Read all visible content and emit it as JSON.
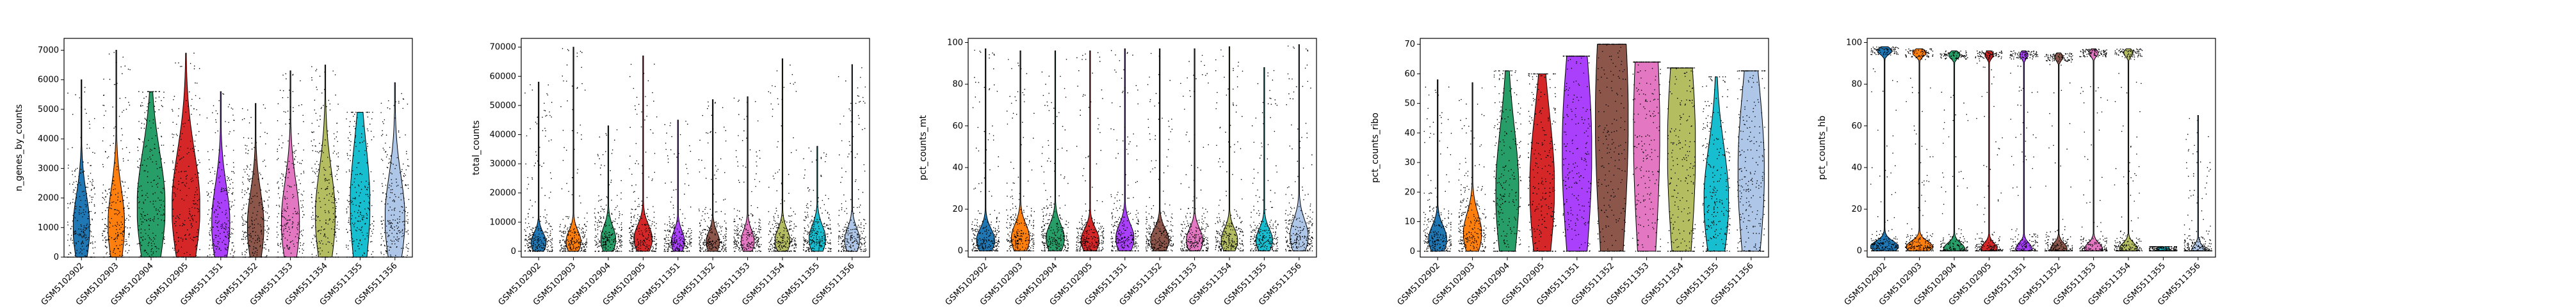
{
  "colors": {
    "GSM5102902": "#1f77b4",
    "GSM5102903": "#ff7f0e",
    "GSM5102904": "#279e68",
    "GSM5102905": "#d62728",
    "GSM5511351": "#aa40fc",
    "GSM5511352": "#8c564b",
    "GSM5511353": "#e377c2",
    "GSM5511354": "#b5bd61",
    "GSM5511355": "#17becf",
    "GSM5511356": "#aec7e8"
  },
  "chart_data": [
    {
      "type": "violin",
      "ylabel": "n_genes_by_counts",
      "ylim": [
        0,
        7400
      ],
      "yticks": [
        0,
        1000,
        2000,
        3000,
        4000,
        5000,
        6000,
        7000
      ],
      "categories": [
        "GSM5102902",
        "GSM5102903",
        "GSM5102904",
        "GSM5102905",
        "GSM5511351",
        "GSM5511352",
        "GSM5511353",
        "GSM5511354",
        "GSM5511355",
        "GSM5511356"
      ],
      "series": [
        {
          "category": "GSM5102902",
          "median": 1000,
          "max": 6000,
          "spread": 0.5
        },
        {
          "category": "GSM5102903",
          "median": 1100,
          "max": 7000,
          "spread": 0.5
        },
        {
          "category": "GSM5102904",
          "median": 1700,
          "max": 5600,
          "spread": 0.85
        },
        {
          "category": "GSM5102905",
          "median": 1700,
          "max": 6900,
          "spread": 0.85
        },
        {
          "category": "GSM5511351",
          "median": 1150,
          "max": 5600,
          "spread": 0.55
        },
        {
          "category": "GSM5511352",
          "median": 1050,
          "max": 5200,
          "spread": 0.5
        },
        {
          "category": "GSM5511353",
          "median": 1200,
          "max": 6300,
          "spread": 0.55
        },
        {
          "category": "GSM5511354",
          "median": 1400,
          "max": 6500,
          "spread": 0.6
        },
        {
          "category": "GSM5511355",
          "median": 1800,
          "max": 4900,
          "spread": 0.6
        },
        {
          "category": "GSM5511356",
          "median": 1300,
          "max": 5900,
          "spread": 0.6
        }
      ]
    },
    {
      "type": "violin",
      "ylabel": "total_counts",
      "ylim": [
        -2000,
        73000
      ],
      "yticks": [
        0,
        10000,
        20000,
        30000,
        40000,
        50000,
        60000,
        70000
      ],
      "categories": [
        "GSM5102902",
        "GSM5102903",
        "GSM5102904",
        "GSM5102905",
        "GSM5511351",
        "GSM5511352",
        "GSM5511353",
        "GSM5511354",
        "GSM5511355",
        "GSM5511356"
      ],
      "series": [
        {
          "category": "GSM5102902",
          "median": 3000,
          "max": 58000,
          "spread": 0.45
        },
        {
          "category": "GSM5102903",
          "median": 3300,
          "max": 70000,
          "spread": 0.45
        },
        {
          "category": "GSM5102904",
          "median": 4000,
          "max": 43000,
          "spread": 0.45
        },
        {
          "category": "GSM5102905",
          "median": 4200,
          "max": 67000,
          "spread": 0.55
        },
        {
          "category": "GSM5511351",
          "median": 3300,
          "max": 45000,
          "spread": 0.4
        },
        {
          "category": "GSM5511352",
          "median": 3200,
          "max": 52000,
          "spread": 0.4
        },
        {
          "category": "GSM5511353",
          "median": 3400,
          "max": 53000,
          "spread": 0.4
        },
        {
          "category": "GSM5511354",
          "median": 3600,
          "max": 66000,
          "spread": 0.45
        },
        {
          "category": "GSM5511355",
          "median": 4200,
          "max": 36000,
          "spread": 0.5
        },
        {
          "category": "GSM5511356",
          "median": 3800,
          "max": 64000,
          "spread": 0.45
        }
      ]
    },
    {
      "type": "violin",
      "ylabel": "pct_counts_mt",
      "ylim": [
        -3,
        102
      ],
      "yticks": [
        0,
        20,
        40,
        60,
        80,
        100
      ],
      "categories": [
        "GSM5102902",
        "GSM5102903",
        "GSM5102904",
        "GSM5102905",
        "GSM5511351",
        "GSM5511352",
        "GSM5511353",
        "GSM5511354",
        "GSM5511355",
        "GSM5511356"
      ],
      "series": [
        {
          "category": "GSM5102902",
          "median": 5,
          "max": 97,
          "spread": 0.55
        },
        {
          "category": "GSM5102903",
          "median": 6,
          "max": 96,
          "spread": 0.55
        },
        {
          "category": "GSM5102904",
          "median": 6,
          "max": 96,
          "spread": 0.55
        },
        {
          "category": "GSM5102905",
          "median": 5,
          "max": 96,
          "spread": 0.55
        },
        {
          "category": "GSM5511351",
          "median": 6,
          "max": 97,
          "spread": 0.55
        },
        {
          "category": "GSM5511352",
          "median": 5,
          "max": 97,
          "spread": 0.55
        },
        {
          "category": "GSM5511353",
          "median": 5,
          "max": 97,
          "spread": 0.5
        },
        {
          "category": "GSM5511354",
          "median": 5,
          "max": 98,
          "spread": 0.5
        },
        {
          "category": "GSM5511355",
          "median": 5,
          "max": 88,
          "spread": 0.5
        },
        {
          "category": "GSM5511356",
          "median": 7,
          "max": 99,
          "spread": 0.55
        }
      ]
    },
    {
      "type": "violin",
      "ylabel": "pct_counts_ribo",
      "ylim": [
        -2,
        72
      ],
      "yticks": [
        0,
        10,
        20,
        30,
        40,
        50,
        60,
        70
      ],
      "categories": [
        "GSM5102902",
        "GSM5102903",
        "GSM5102904",
        "GSM5102905",
        "GSM5511351",
        "GSM5511352",
        "GSM5511353",
        "GSM5511354",
        "GSM5511355",
        "GSM5511356"
      ],
      "series": [
        {
          "category": "GSM5102902",
          "median": 4,
          "max": 58,
          "spread": 0.55
        },
        {
          "category": "GSM5102903",
          "median": 6,
          "max": 57,
          "spread": 0.55
        },
        {
          "category": "GSM5102904",
          "median": 20,
          "max": 61,
          "spread": 0.7
        },
        {
          "category": "GSM5102905",
          "median": 22,
          "max": 60,
          "spread": 0.75
        },
        {
          "category": "GSM5511351",
          "median": 34,
          "max": 66,
          "spread": 0.9
        },
        {
          "category": "GSM5511352",
          "median": 45,
          "max": 70,
          "spread": 1.0
        },
        {
          "category": "GSM5511353",
          "median": 41,
          "max": 64,
          "spread": 0.8
        },
        {
          "category": "GSM5511354",
          "median": 35,
          "max": 62,
          "spread": 0.85
        },
        {
          "category": "GSM5511355",
          "median": 17,
          "max": 59,
          "spread": 0.75
        },
        {
          "category": "GSM5511356",
          "median": 27,
          "max": 61,
          "spread": 0.8
        }
      ]
    },
    {
      "type": "violin",
      "ylabel": "pct_counts_hb",
      "ylim": [
        -3,
        102
      ],
      "yticks": [
        0,
        20,
        40,
        60,
        80,
        100
      ],
      "categories": [
        "GSM5102902",
        "GSM5102903",
        "GSM5102904",
        "GSM5102905",
        "GSM5511351",
        "GSM5511352",
        "GSM5511353",
        "GSM5511354",
        "GSM5511355",
        "GSM5511356"
      ],
      "series": [
        {
          "category": "GSM5102902",
          "median": 2,
          "max": 98,
          "spread": 0.85
        },
        {
          "category": "GSM5102903",
          "median": 2,
          "max": 97,
          "spread": 0.8
        },
        {
          "category": "GSM5102904",
          "median": 1,
          "max": 96,
          "spread": 0.65
        },
        {
          "category": "GSM5102905",
          "median": 1,
          "max": 96,
          "spread": 0.5
        },
        {
          "category": "GSM5511351",
          "median": 1,
          "max": 96,
          "spread": 0.5
        },
        {
          "category": "GSM5511352",
          "median": 1,
          "max": 95,
          "spread": 0.5
        },
        {
          "category": "GSM5511353",
          "median": 1,
          "max": 97,
          "spread": 0.55
        },
        {
          "category": "GSM5511354",
          "median": 1,
          "max": 97,
          "spread": 0.55
        },
        {
          "category": "GSM5511355",
          "median": 0,
          "max": 2,
          "spread": 0.4
        },
        {
          "category": "GSM5511356",
          "median": 0,
          "max": 65,
          "spread": 0.4
        }
      ]
    }
  ]
}
